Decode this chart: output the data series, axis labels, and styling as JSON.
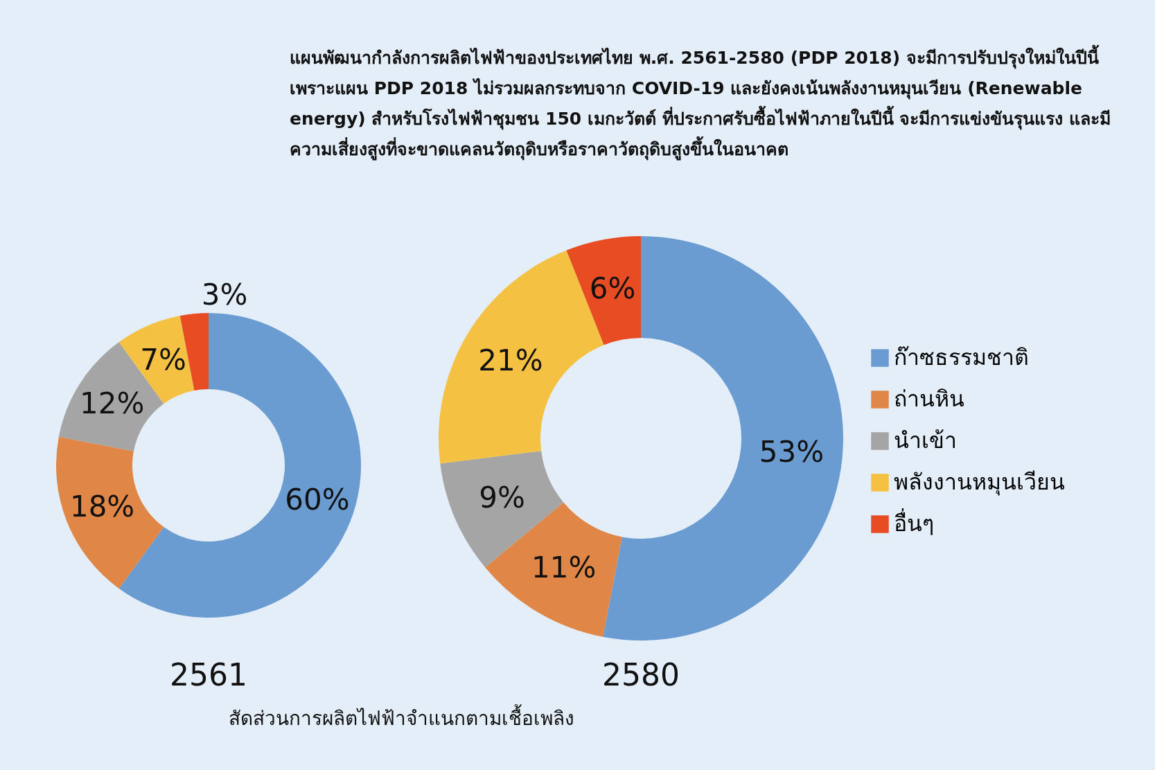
{
  "chart_data": [
    {
      "type": "donut",
      "annotations": [
        "แผนพัฒนากำลังการผลิตไฟฟ้าของประเทศไทย พ.ศ. 2561-2580 (PDP 2018) จะมีการปรับปรุงใหม่ในปีนี้ เพราะแผน PDP 2018 ไม่รวมผลกระทบจาก COVID-19 และยังคงเน้นพลังงานหมุนเวียน (Renewable energy) สำหรับโรงไฟฟ้าชุมชน 150 เมกะวัตต์ ที่ประกาศรับซื้อไฟฟ้าภายในปีนี้ จะมีการแข่งขันรุนแรง และมีความเสี่ยงสูงที่จะขาดแคลนวัตถุดิบหรือราคาวัตถุดิบสูงขึ้นในอนาคต",
        "สัดส่วนการผลิตไฟฟ้าจำแนกตามเชื้อเพลิง"
      ],
      "xlabel": "2561",
      "categories": [
        null,
        null,
        null,
        null,
        null
      ],
      "values": [
        60,
        18,
        12,
        7,
        3
      ],
      "value_labels": [
        "60%",
        "18%",
        "12%",
        "7%",
        "3%"
      ],
      "colors": [
        "#6a9bd1",
        "#e08646",
        "#a5a5a5",
        "#f4c143",
        "#e84c22"
      ]
    },
    {
      "type": "donut",
      "xlabel": "2580",
      "legend": "right",
      "categories": [
        "ก๊าซธรรมชาติ",
        "ถ่านหิน",
        "นำเข้า",
        "พลังงานหมุนเวียน",
        "อื่นๆ"
      ],
      "values": [
        53,
        11,
        9,
        21,
        6
      ],
      "value_labels": [
        "53%",
        "11%",
        "9%",
        "21%",
        "6%"
      ],
      "colors": [
        "#6a9bd1",
        "#e08646",
        "#a5a5a5",
        "#f4c143",
        "#e84c22"
      ]
    }
  ]
}
